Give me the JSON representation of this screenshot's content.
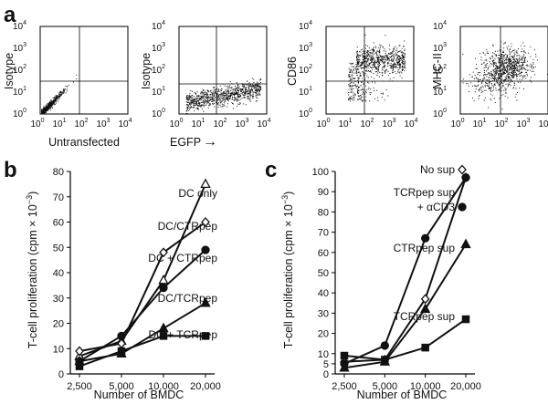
{
  "panel_letters": {
    "a": "a",
    "b": "b",
    "c": "c"
  },
  "flow": {
    "panels": [
      {
        "ylabel": "Isotype",
        "xlabel": "Untransfected",
        "arrow": ""
      },
      {
        "ylabel": "Isotype",
        "xlabel": "EGFP",
        "arrow": "→"
      },
      {
        "ylabel": "CD86",
        "xlabel": "",
        "arrow": ""
      },
      {
        "ylabel": "MHC-II",
        "xlabel": "",
        "arrow": ""
      }
    ],
    "tick_labels": [
      "10",
      "10",
      "10",
      "10",
      "10"
    ],
    "tick_exponents": [
      "0",
      "1",
      "2",
      "3",
      "4"
    ]
  },
  "chart_data": [
    {
      "type": "line",
      "panel": "b",
      "categories": [
        "2,500",
        "5,000",
        "10,000",
        "20,000"
      ],
      "xlabel": "Number of BMDC",
      "ylabel": "T-cell proliferation (cpm × 10",
      "ylabel_sup": "−3",
      "ylabel_close": ")",
      "ylim": [
        0,
        80
      ],
      "yticks": [
        "0",
        "10",
        "20",
        "30",
        "40",
        "50",
        "60",
        "70",
        "80"
      ],
      "series": [
        {
          "name": "DC only",
          "marker": "triangle-open",
          "values": [
            7,
            13,
            37,
            75
          ]
        },
        {
          "name": "DC/CTRpep",
          "marker": "diamond-open",
          "values": [
            9,
            12,
            48,
            60
          ]
        },
        {
          "name": "DC + CTRpep",
          "marker": "circle-filled",
          "values": [
            5,
            15,
            34,
            49
          ]
        },
        {
          "name": "DC/TCRpep",
          "marker": "triangle-filled",
          "values": [
            5,
            8,
            18,
            28
          ]
        },
        {
          "name": "DC + TCRpep",
          "marker": "square-filled",
          "values": [
            3,
            9,
            15,
            15
          ]
        }
      ]
    },
    {
      "type": "line",
      "panel": "c",
      "categories": [
        "2,500",
        "5,000",
        "10,000",
        "20,000"
      ],
      "xlabel": "Number of BMDC",
      "ylabel": "T-cell proliferation (cpm × 10",
      "ylabel_sup": "−3",
      "ylabel_close": ")",
      "ylim": [
        0,
        100
      ],
      "yticks": [
        "0",
        "5",
        "10",
        "20",
        "30",
        "40",
        "50",
        "60",
        "70",
        "80",
        "90",
        "100"
      ],
      "series": [
        {
          "name": "No sup",
          "marker": "diamond-open",
          "values": [
            6,
            7,
            37,
            97
          ]
        },
        {
          "name": "TCRpep sup",
          "name_line2": "+ αCD3",
          "marker": "circle-filled",
          "values": [
            5,
            14,
            67,
            97
          ]
        },
        {
          "name": "CTRpep sup",
          "marker": "triangle-filled",
          "values": [
            3,
            6,
            32,
            64
          ]
        },
        {
          "name": "TCRpep sup",
          "marker": "square-filled",
          "values": [
            9,
            7,
            13,
            27
          ]
        }
      ]
    }
  ]
}
